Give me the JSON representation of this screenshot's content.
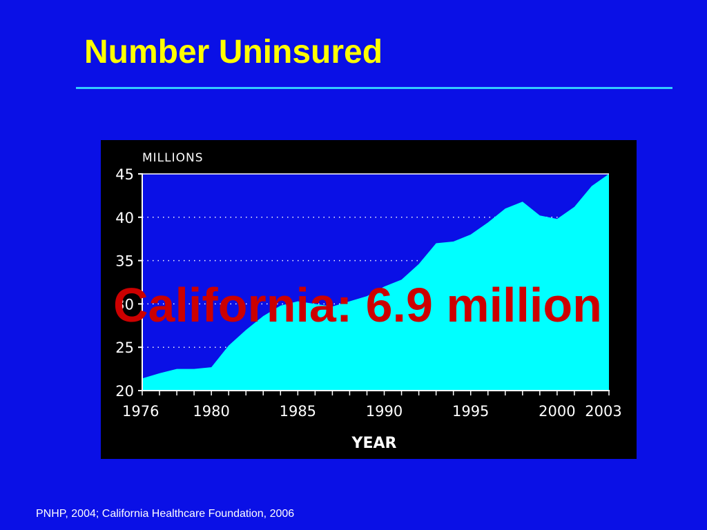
{
  "slide": {
    "title": "Number Uninsured",
    "overlay_label": "California: 6.9 million",
    "source": "PNHP, 2004; California Healthcare Foundation, 2006"
  },
  "colors": {
    "background": "#0a10e6",
    "title": "#ffff00",
    "rule": "#33ccff",
    "panel": "#000000",
    "area_fill": "#00ffff",
    "plot_bg": "#0a10e6",
    "overlay": "#cc0000",
    "text": "#ffffff"
  },
  "chart_data": {
    "type": "area",
    "ylabel": "MILLIONS",
    "xlabel": "YEAR",
    "ylim": [
      20,
      45
    ],
    "xlim": [
      1976,
      2003
    ],
    "yticks": [
      20,
      25,
      30,
      35,
      40,
      45
    ],
    "xtick_labels": [
      "1976",
      "1980",
      "1985",
      "1990",
      "1995",
      "2000",
      "2003"
    ],
    "grid": "dotted horizontal at 25, 30, 35, 40",
    "x": [
      1976,
      1977,
      1978,
      1979,
      1980,
      1981,
      1982,
      1983,
      1984,
      1985,
      1986,
      1987,
      1988,
      1989,
      1990,
      1991,
      1992,
      1993,
      1994,
      1995,
      1996,
      1997,
      1998,
      1999,
      2000,
      2001,
      2002,
      2003
    ],
    "values": [
      21.4,
      22.0,
      22.5,
      22.5,
      22.7,
      25.2,
      27.0,
      28.6,
      29.8,
      30.3,
      30.0,
      29.7,
      30.3,
      30.9,
      32.0,
      32.8,
      34.6,
      37.0,
      37.2,
      38.0,
      39.4,
      41.0,
      41.8,
      40.2,
      39.8,
      41.2,
      43.6,
      45.0
    ]
  }
}
